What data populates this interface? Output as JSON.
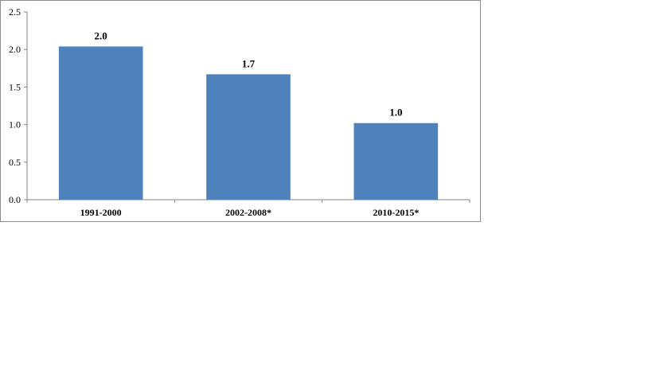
{
  "chart_data": {
    "type": "bar",
    "categories": [
      "1991-2000",
      "2002-2008*",
      "2010-2015*"
    ],
    "values": [
      2.04,
      1.67,
      1.02
    ],
    "data_labels": [
      "2.0",
      "1.7",
      "1.0"
    ],
    "title": "",
    "xlabel": "",
    "ylabel": "",
    "ylim": [
      0,
      2.5
    ],
    "yticks": [
      "0.0",
      "0.5",
      "1.0",
      "1.5",
      "2.0",
      "2.5"
    ],
    "grid": false,
    "legend": "none",
    "bar_color": "#4F81BD"
  }
}
